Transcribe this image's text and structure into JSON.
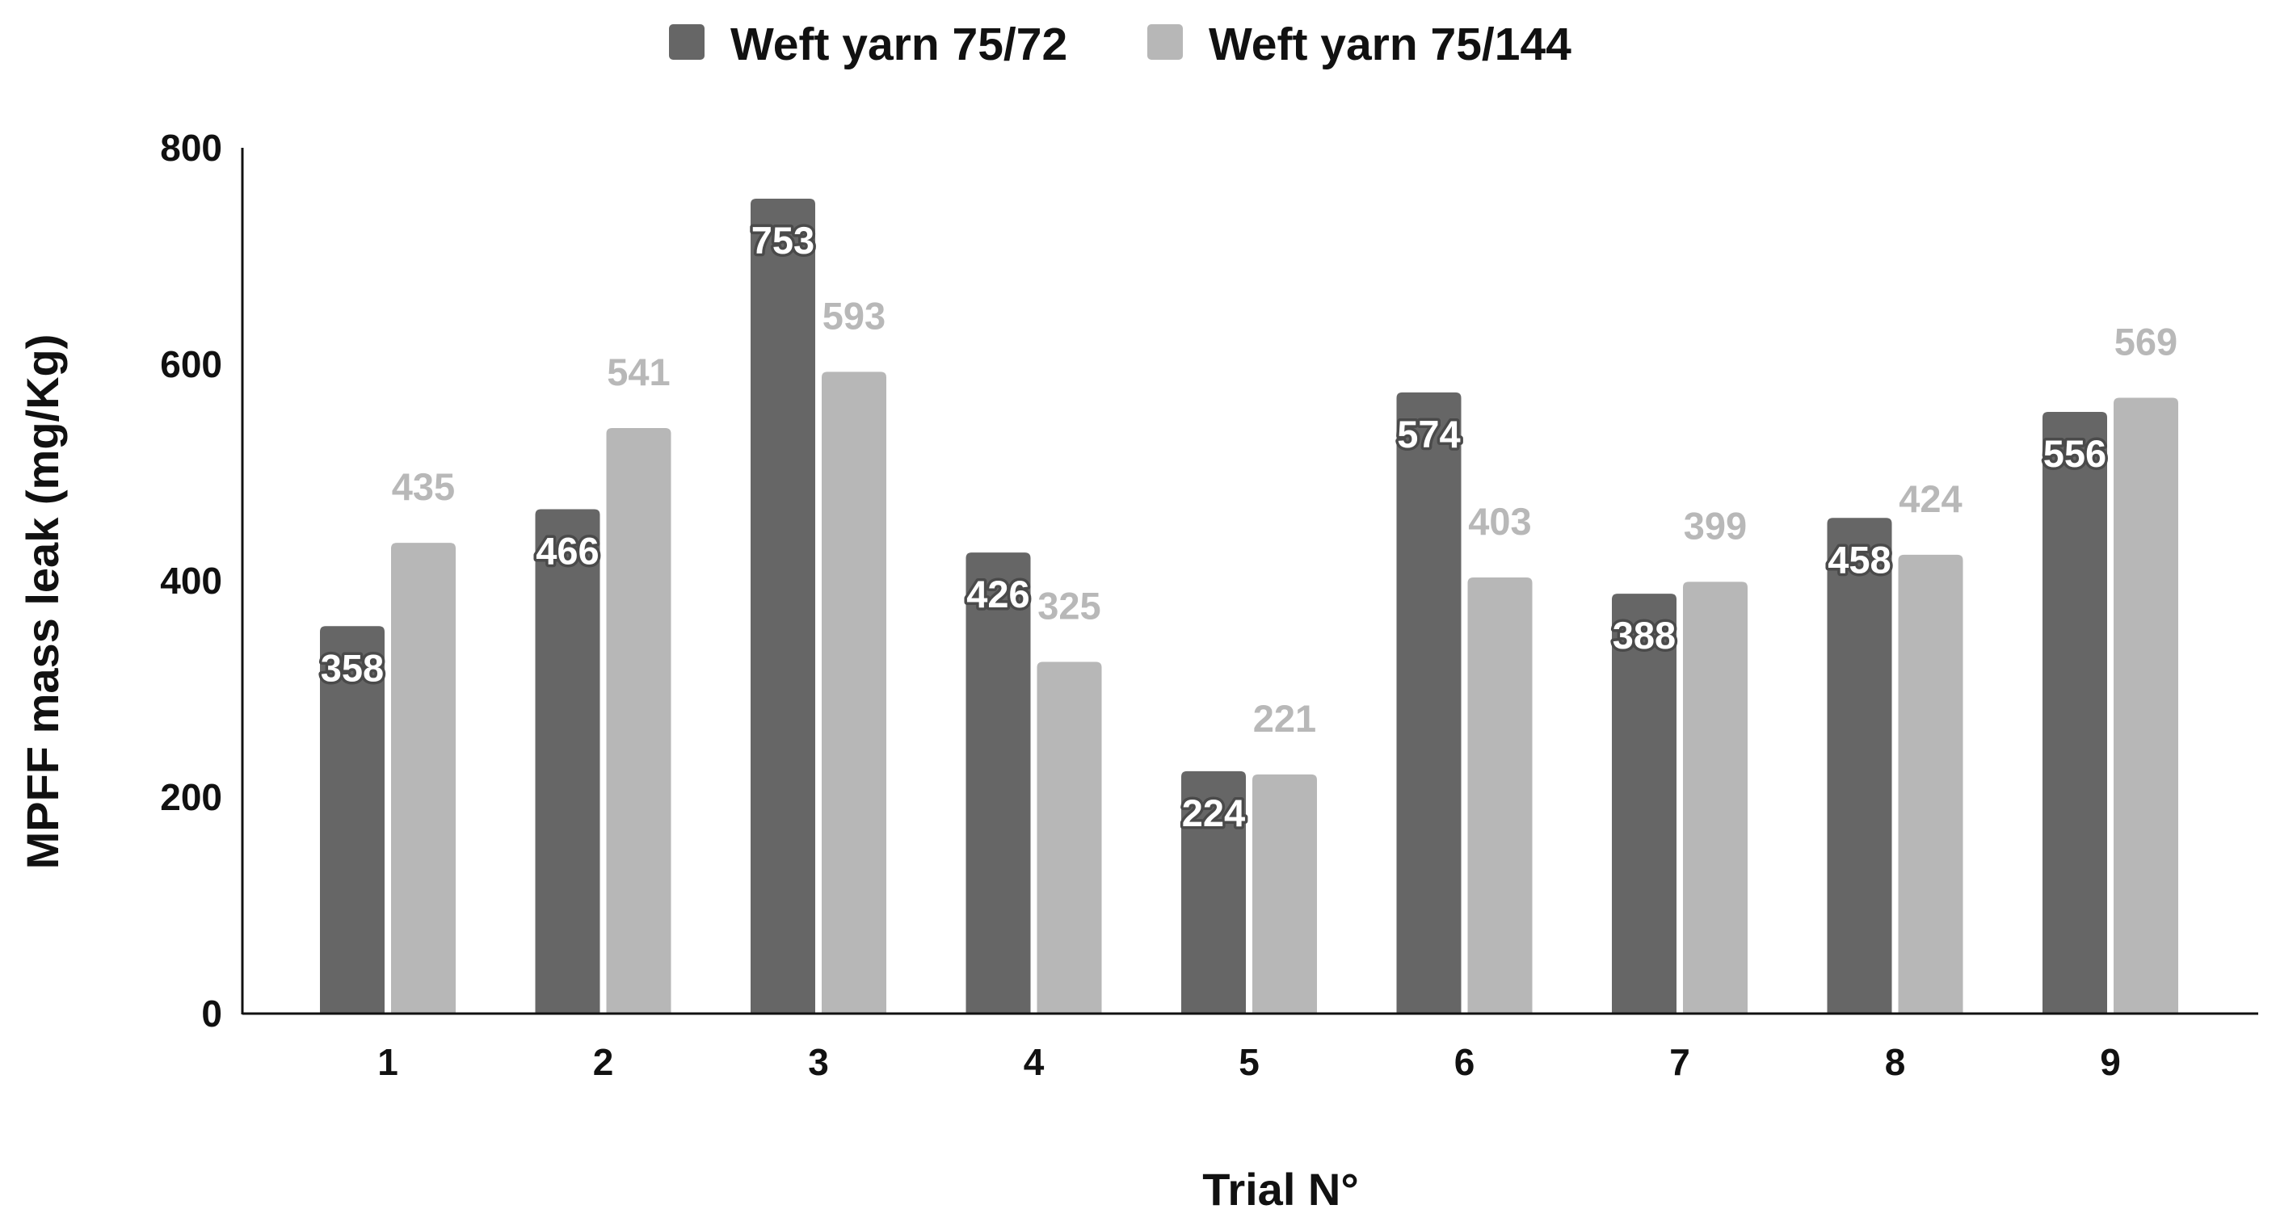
{
  "chart_data": {
    "type": "bar",
    "categories": [
      "1",
      "2",
      "3",
      "4",
      "5",
      "6",
      "7",
      "8",
      "9"
    ],
    "series": [
      {
        "name": "Weft yarn 75/72",
        "color": "#666666",
        "values": [
          358,
          466,
          753,
          426,
          224,
          574,
          388,
          458,
          556
        ]
      },
      {
        "name": "Weft yarn 75/144",
        "color": "#b7b7b7",
        "values": [
          435,
          541,
          593,
          325,
          221,
          403,
          399,
          424,
          569
        ]
      }
    ],
    "title": "",
    "xlabel": "Trial N°",
    "ylabel": "MPFF mass leak (mg/Kg)",
    "ylim": [
      0,
      800
    ],
    "yticks": [
      0,
      200,
      400,
      600,
      800
    ],
    "grid": false,
    "legend_position": "top-center",
    "data_labels": true
  }
}
